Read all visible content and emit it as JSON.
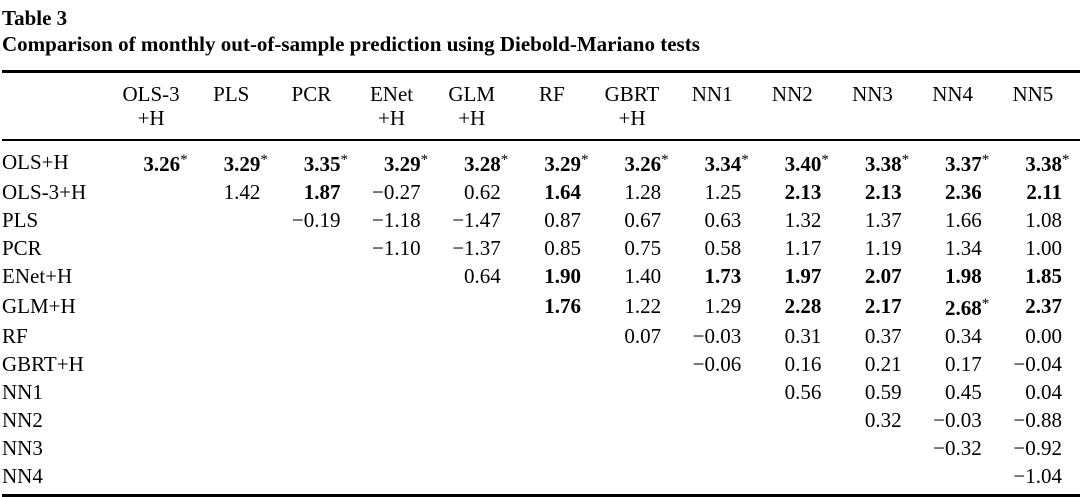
{
  "table": {
    "label": "Table 3",
    "caption": "Comparison of monthly out-of-sample prediction using Diebold-Mariano tests",
    "columns": [
      {
        "line1": "OLS-3",
        "line2": "+H"
      },
      {
        "line1": "PLS",
        "line2": ""
      },
      {
        "line1": "PCR",
        "line2": ""
      },
      {
        "line1": "ENet",
        "line2": "+H"
      },
      {
        "line1": "GLM",
        "line2": "+H"
      },
      {
        "line1": "RF",
        "line2": ""
      },
      {
        "line1": "GBRT",
        "line2": "+H"
      },
      {
        "line1": "NN1",
        "line2": ""
      },
      {
        "line1": "NN2",
        "line2": ""
      },
      {
        "line1": "NN3",
        "line2": ""
      },
      {
        "line1": "NN4",
        "line2": ""
      },
      {
        "line1": "NN5",
        "line2": ""
      }
    ],
    "rows": [
      {
        "label": "OLS+H",
        "cells": [
          {
            "value": "3.26",
            "bold": true,
            "star": true
          },
          {
            "value": "3.29",
            "bold": true,
            "star": true
          },
          {
            "value": "3.35",
            "bold": true,
            "star": true
          },
          {
            "value": "3.29",
            "bold": true,
            "star": true
          },
          {
            "value": "3.28",
            "bold": true,
            "star": true
          },
          {
            "value": "3.29",
            "bold": true,
            "star": true
          },
          {
            "value": "3.26",
            "bold": true,
            "star": true
          },
          {
            "value": "3.34",
            "bold": true,
            "star": true
          },
          {
            "value": "3.40",
            "bold": true,
            "star": true
          },
          {
            "value": "3.38",
            "bold": true,
            "star": true
          },
          {
            "value": "3.37",
            "bold": true,
            "star": true
          },
          {
            "value": "3.38",
            "bold": true,
            "star": true
          }
        ]
      },
      {
        "label": "OLS-3+H",
        "cells": [
          null,
          {
            "value": "1.42"
          },
          {
            "value": "1.87",
            "bold": true
          },
          {
            "value": "−0.27"
          },
          {
            "value": "0.62"
          },
          {
            "value": "1.64",
            "bold": true
          },
          {
            "value": "1.28"
          },
          {
            "value": "1.25"
          },
          {
            "value": "2.13",
            "bold": true
          },
          {
            "value": "2.13",
            "bold": true
          },
          {
            "value": "2.36",
            "bold": true
          },
          {
            "value": "2.11",
            "bold": true
          }
        ]
      },
      {
        "label": "PLS",
        "cells": [
          null,
          null,
          {
            "value": "−0.19"
          },
          {
            "value": "−1.18"
          },
          {
            "value": "−1.47"
          },
          {
            "value": "0.87"
          },
          {
            "value": "0.67"
          },
          {
            "value": "0.63"
          },
          {
            "value": "1.32"
          },
          {
            "value": "1.37"
          },
          {
            "value": "1.66"
          },
          {
            "value": "1.08"
          }
        ]
      },
      {
        "label": "PCR",
        "cells": [
          null,
          null,
          null,
          {
            "value": "−1.10"
          },
          {
            "value": "−1.37"
          },
          {
            "value": "0.85"
          },
          {
            "value": "0.75"
          },
          {
            "value": "0.58"
          },
          {
            "value": "1.17"
          },
          {
            "value": "1.19"
          },
          {
            "value": "1.34"
          },
          {
            "value": "1.00"
          }
        ]
      },
      {
        "label": "ENet+H",
        "cells": [
          null,
          null,
          null,
          null,
          {
            "value": "0.64"
          },
          {
            "value": "1.90",
            "bold": true
          },
          {
            "value": "1.40"
          },
          {
            "value": "1.73",
            "bold": true
          },
          {
            "value": "1.97",
            "bold": true
          },
          {
            "value": "2.07",
            "bold": true
          },
          {
            "value": "1.98",
            "bold": true
          },
          {
            "value": "1.85",
            "bold": true
          }
        ]
      },
      {
        "label": "GLM+H",
        "cells": [
          null,
          null,
          null,
          null,
          null,
          {
            "value": "1.76",
            "bold": true
          },
          {
            "value": "1.22"
          },
          {
            "value": "1.29"
          },
          {
            "value": "2.28",
            "bold": true
          },
          {
            "value": "2.17",
            "bold": true
          },
          {
            "value": "2.68",
            "bold": true,
            "star": true
          },
          {
            "value": "2.37",
            "bold": true
          }
        ]
      },
      {
        "label": "RF",
        "cells": [
          null,
          null,
          null,
          null,
          null,
          null,
          {
            "value": "0.07"
          },
          {
            "value": "−0.03"
          },
          {
            "value": "0.31"
          },
          {
            "value": "0.37"
          },
          {
            "value": "0.34"
          },
          {
            "value": "0.00"
          }
        ]
      },
      {
        "label": "GBRT+H",
        "cells": [
          null,
          null,
          null,
          null,
          null,
          null,
          null,
          {
            "value": "−0.06"
          },
          {
            "value": "0.16"
          },
          {
            "value": "0.21"
          },
          {
            "value": "0.17"
          },
          {
            "value": "−0.04"
          }
        ]
      },
      {
        "label": "NN1",
        "cells": [
          null,
          null,
          null,
          null,
          null,
          null,
          null,
          null,
          {
            "value": "0.56"
          },
          {
            "value": "0.59"
          },
          {
            "value": "0.45"
          },
          {
            "value": "0.04"
          }
        ]
      },
      {
        "label": "NN2",
        "cells": [
          null,
          null,
          null,
          null,
          null,
          null,
          null,
          null,
          null,
          {
            "value": "0.32"
          },
          {
            "value": "−0.03"
          },
          {
            "value": "−0.88"
          }
        ]
      },
      {
        "label": "NN3",
        "cells": [
          null,
          null,
          null,
          null,
          null,
          null,
          null,
          null,
          null,
          null,
          {
            "value": "−0.32"
          },
          {
            "value": "−0.92"
          }
        ]
      },
      {
        "label": "NN4",
        "cells": [
          null,
          null,
          null,
          null,
          null,
          null,
          null,
          null,
          null,
          null,
          null,
          {
            "value": "−1.04"
          }
        ]
      }
    ]
  }
}
